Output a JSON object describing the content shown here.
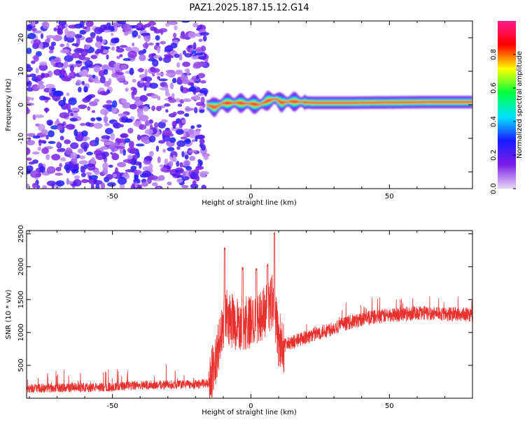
{
  "figure": {
    "title": "PAZ1.2025.187.15.12.G14"
  },
  "chart_data": [
    {
      "type": "heatmap",
      "xlabel": "Height of straight line (km)",
      "ylabel": "Frequency (Hz)",
      "xlim": [
        -81,
        80
      ],
      "ylim": [
        -25,
        25
      ],
      "x_ticks": [
        -50,
        0,
        50
      ],
      "x_tick_labels": [
        "-50",
        "0",
        "50"
      ],
      "y_ticks": [
        -20,
        -10,
        0,
        10,
        20
      ],
      "y_tick_labels": [
        "-20",
        "-10",
        "0",
        "10",
        "20"
      ],
      "noise_region": {
        "x_range": [
          -81,
          -16
        ],
        "y_range": [
          -25,
          25
        ],
        "amplitude_range": [
          0.05,
          0.3
        ]
      },
      "signal_band": {
        "x_range": [
          -16,
          80
        ],
        "center_path": [
          {
            "x": -16,
            "y": 0.0
          },
          {
            "x": -13,
            "y": -0.8
          },
          {
            "x": -10,
            "y": 0.5
          },
          {
            "x": -5,
            "y": 0.6
          },
          {
            "x": 0,
            "y": 0.3
          },
          {
            "x": 3,
            "y": 0.0
          },
          {
            "x": 6,
            "y": 1.2
          },
          {
            "x": 9,
            "y": 1.8
          },
          {
            "x": 11,
            "y": 0.6
          },
          {
            "x": 14,
            "y": 1.0
          },
          {
            "x": 17,
            "y": 0.9
          },
          {
            "x": 22,
            "y": 0.6
          },
          {
            "x": 35,
            "y": 0.6
          },
          {
            "x": 50,
            "y": 0.7
          },
          {
            "x": 65,
            "y": 0.8
          },
          {
            "x": 80,
            "y": 0.8
          }
        ],
        "peak_amplitude": 1.0
      },
      "grid": false
    },
    {
      "type": "line",
      "xlabel": "Height of straight line (km)",
      "ylabel": "SNR (10 * v/v)",
      "xlim": [
        -81,
        80
      ],
      "ylim": [
        0,
        2550
      ],
      "x_ticks": [
        -50,
        0,
        50
      ],
      "x_tick_labels": [
        "-50",
        "0",
        "50"
      ],
      "y_ticks": [
        500,
        1000,
        1500,
        2000,
        2500
      ],
      "y_tick_labels": [
        "500",
        "1000",
        "1500",
        "2000",
        "2500"
      ],
      "line_color": "#e8312e",
      "trend_key_points": [
        {
          "x": -81,
          "y": 150
        },
        {
          "x": -50,
          "y": 170
        },
        {
          "x": -40,
          "y": 200
        },
        {
          "x": -20,
          "y": 210
        },
        {
          "x": -15,
          "y": 230
        },
        {
          "x": -12,
          "y": 700
        },
        {
          "x": -9,
          "y": 1250
        },
        {
          "x": -5,
          "y": 1100
        },
        {
          "x": 0,
          "y": 1150
        },
        {
          "x": 5,
          "y": 1300
        },
        {
          "x": 8,
          "y": 1500
        },
        {
          "x": 10,
          "y": 900
        },
        {
          "x": 12,
          "y": 800
        },
        {
          "x": 14,
          "y": 830
        },
        {
          "x": 18,
          "y": 900
        },
        {
          "x": 25,
          "y": 1000
        },
        {
          "x": 35,
          "y": 1150
        },
        {
          "x": 45,
          "y": 1240
        },
        {
          "x": 60,
          "y": 1300
        },
        {
          "x": 80,
          "y": 1270
        }
      ],
      "spikes": [
        {
          "x": -9.5,
          "y": 2300
        },
        {
          "x": -3,
          "y": 2000
        },
        {
          "x": 2,
          "y": 1980
        },
        {
          "x": 6,
          "y": 2050
        },
        {
          "x": 8.5,
          "y": 2550
        }
      ],
      "grid": false
    }
  ],
  "colorbar": {
    "label": "Normalized spectral amplitude",
    "range": [
      0,
      1
    ],
    "tick_labels": [
      "0.0",
      "0.2",
      "0.4",
      "0.6",
      "0.8"
    ],
    "colors": [
      "#e9d6f6",
      "#7a1de6",
      "#1a1aff",
      "#00e5ff",
      "#00ff3c",
      "#ffff00",
      "#ff0000",
      "#ff1a8c"
    ]
  }
}
